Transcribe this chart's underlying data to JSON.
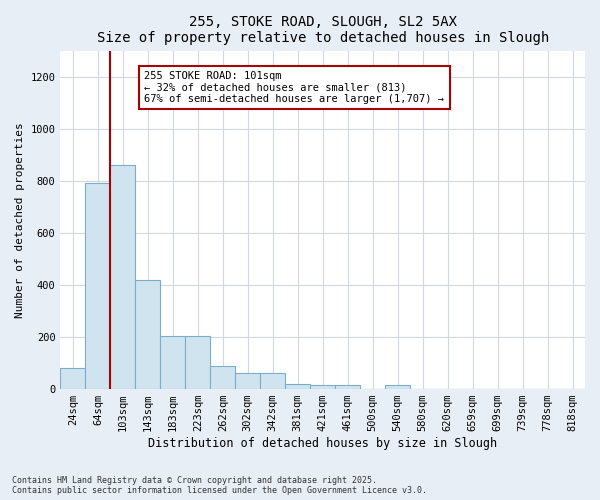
{
  "title1": "255, STOKE ROAD, SLOUGH, SL2 5AX",
  "title2": "Size of property relative to detached houses in Slough",
  "xlabel": "Distribution of detached houses by size in Slough",
  "ylabel": "Number of detached properties",
  "categories": [
    "24sqm",
    "64sqm",
    "103sqm",
    "143sqm",
    "183sqm",
    "223sqm",
    "262sqm",
    "302sqm",
    "342sqm",
    "381sqm",
    "421sqm",
    "461sqm",
    "500sqm",
    "540sqm",
    "580sqm",
    "620sqm",
    "659sqm",
    "699sqm",
    "739sqm",
    "778sqm",
    "818sqm"
  ],
  "values": [
    80,
    790,
    860,
    420,
    205,
    205,
    90,
    60,
    60,
    20,
    15,
    15,
    0,
    15,
    0,
    0,
    0,
    0,
    0,
    0,
    0
  ],
  "bar_color": "#d0e4f0",
  "bar_edge_color": "#7aaec8",
  "vline_color": "#aa0000",
  "annotation_text": "255 STOKE ROAD: 101sqm\n← 32% of detached houses are smaller (813)\n67% of semi-detached houses are larger (1,707) →",
  "annotation_box_color": "#ffffff",
  "annotation_box_edge": "#aa0000",
  "ylim": [
    0,
    1300
  ],
  "yticks": [
    0,
    200,
    400,
    600,
    800,
    1000,
    1200
  ],
  "footer1": "Contains HM Land Registry data © Crown copyright and database right 2025.",
  "footer2": "Contains public sector information licensed under the Open Government Licence v3.0.",
  "bg_color": "#e8eef5",
  "plot_bg_color": "#ffffff",
  "grid_color": "#d0d8e8",
  "title_fontsize": 10,
  "tick_fontsize": 7.5,
  "ylabel_fontsize": 8,
  "xlabel_fontsize": 8.5,
  "footer_fontsize": 6
}
